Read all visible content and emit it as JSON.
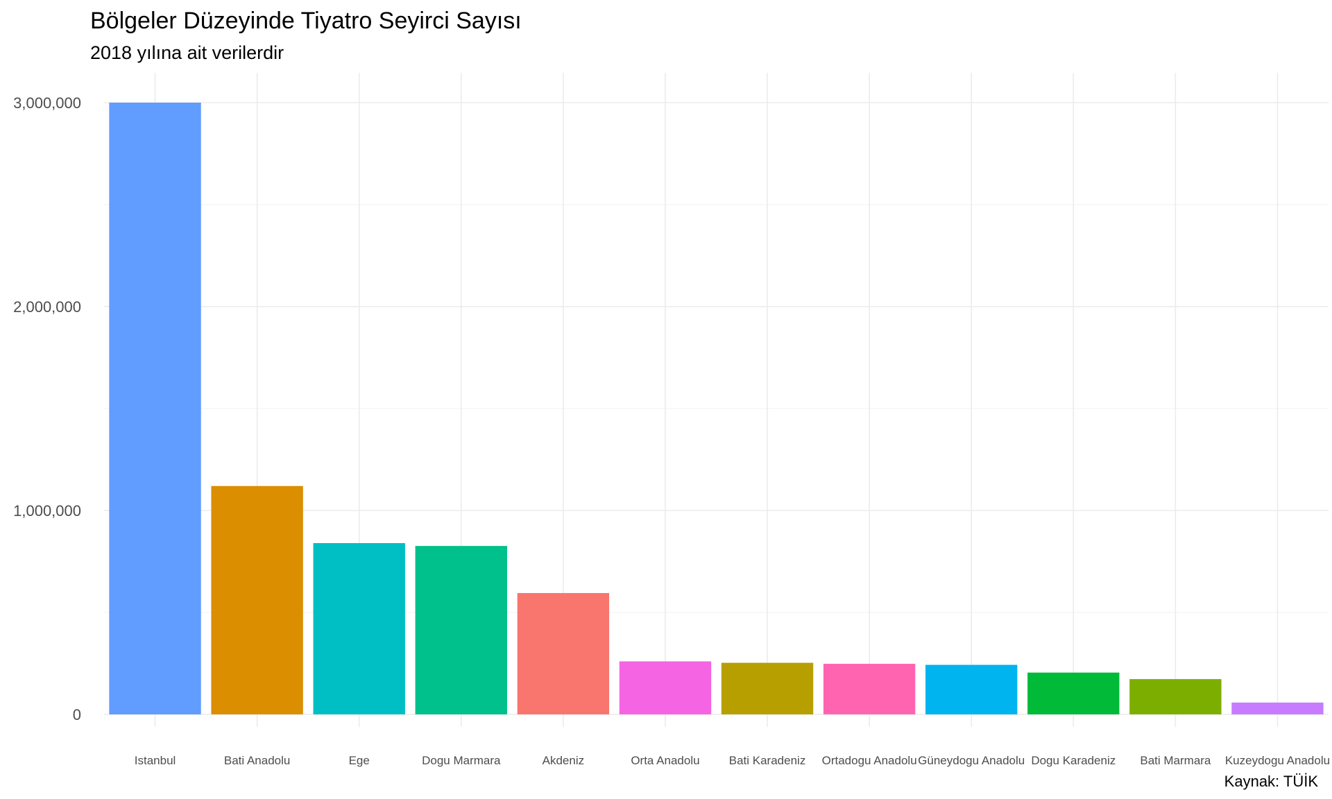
{
  "chart_data": {
    "type": "bar",
    "title": "Bölgeler Düzeyinde Tiyatro Seyirci Sayısı",
    "subtitle": "2018 yılına ait verilerdir",
    "caption": "Kaynak: TÜİK",
    "xlabel": "",
    "ylabel": "",
    "categories": [
      "Istanbul",
      "Bati Anadolu",
      "Ege",
      "Dogu Marmara",
      "Akdeniz",
      "Orta Anadolu",
      "Bati Karadeniz",
      "Ortadogu Anadolu",
      "Güneydogu Anadolu",
      "Dogu Karadeniz",
      "Bati Marmara",
      "Kuzeydogu Anadolu"
    ],
    "values": [
      3000000,
      1120000,
      840000,
      826000,
      595000,
      260000,
      253000,
      248000,
      243000,
      205000,
      173000,
      58000
    ],
    "colors": [
      "#619CFF",
      "#DB8E00",
      "#00BFC4",
      "#00C08B",
      "#F8766D",
      "#F564E3",
      "#B79F00",
      "#FF64B0",
      "#00B4F0",
      "#00BA38",
      "#7CAE00",
      "#C77CFF"
    ],
    "ylim": [
      0,
      3000000
    ],
    "yticks": [
      0,
      1000000,
      2000000,
      3000000
    ],
    "ytick_labels": [
      "0",
      "1,000,000",
      "2,000,000",
      "3,000,000"
    ],
    "grid": true,
    "legend": "none"
  }
}
